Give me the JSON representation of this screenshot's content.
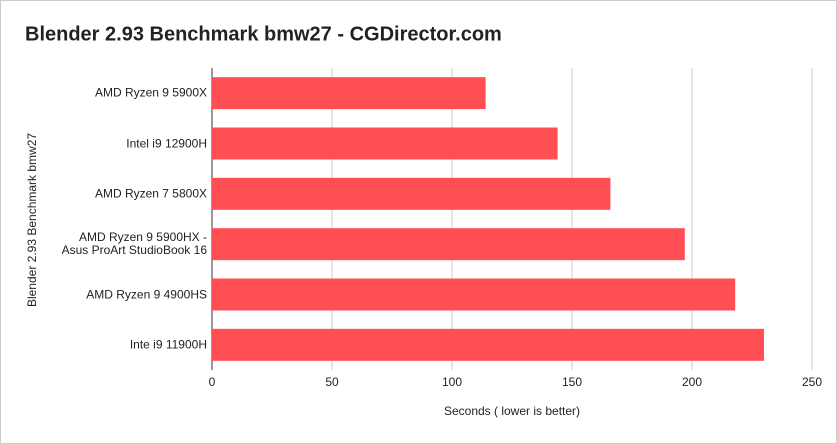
{
  "chart_data": {
    "type": "bar",
    "orientation": "horizontal",
    "title": "Blender 2.93 Benchmark bmw27 - CGDirector.com",
    "x_label": "Seconds ( lower is better)",
    "y_label": "Blender 2.93 Benchmark bmw27",
    "categories": [
      "AMD Ryzen 9 5900X",
      "Intel i9 12900H",
      "AMD Ryzen 7 5800X",
      "AMD Ryzen 9 5900HX -\nAsus ProArt StudioBook 16",
      "AMD Ryzen 9 4900HS",
      "Inte i9 11900H"
    ],
    "values": [
      114,
      144,
      166,
      197,
      218,
      230
    ],
    "color": "#ff4f55",
    "xlim": [
      0,
      250
    ],
    "xticks": [
      0,
      50,
      100,
      150,
      200,
      250
    ],
    "grid": true
  }
}
